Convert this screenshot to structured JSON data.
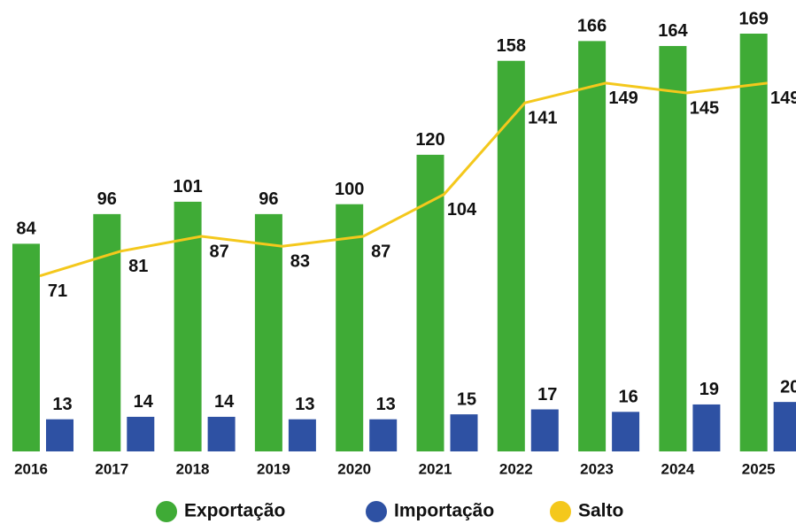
{
  "chart_data": {
    "type": "bar",
    "categories": [
      "2016",
      "2017",
      "2018",
      "2019",
      "2020",
      "2021",
      "2022",
      "2023",
      "2024",
      "2025"
    ],
    "series": [
      {
        "name": "Exportação",
        "color": "#3fab36",
        "type": "bar",
        "values": [
          84,
          96,
          101,
          96,
          100,
          120,
          158,
          166,
          164,
          169
        ]
      },
      {
        "name": "Importação",
        "color": "#2e51a3",
        "type": "bar",
        "values": [
          13,
          14,
          14,
          13,
          13,
          15,
          17,
          16,
          19,
          20
        ]
      },
      {
        "name": "Salto",
        "color": "#f4c81c",
        "type": "line",
        "values": [
          71,
          81,
          87,
          83,
          87,
          104,
          141,
          149,
          145,
          149
        ]
      }
    ]
  }
}
